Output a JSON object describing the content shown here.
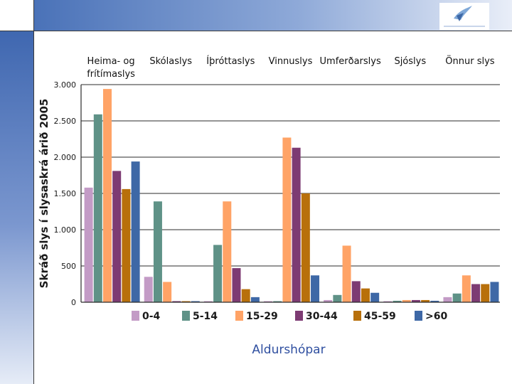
{
  "chart_data": {
    "type": "bar",
    "ylabel": "Skráð slys í slysaskrá árið 2005",
    "xlabel": "Aldurshópar",
    "categories": [
      [
        "Heima- og",
        "frítímaslys"
      ],
      [
        "Skólaslys"
      ],
      [
        "Íþróttaslys"
      ],
      [
        "Vinnuslys"
      ],
      [
        "Umferðarslys"
      ],
      [
        "Sjóslys"
      ],
      [
        "Önnur slys"
      ]
    ],
    "ylim": [
      0,
      3000
    ],
    "yticks": [
      0,
      500,
      1000,
      1500,
      2000,
      2500,
      3000
    ],
    "ytick_labels": [
      "0",
      "500",
      "1.000",
      "1.500",
      "2.000",
      "2.500",
      "3.000"
    ],
    "grid": true,
    "legend_position": "bottom",
    "series": [
      {
        "name": "0-4",
        "color": "#c39bc6",
        "values": [
          1580,
          350,
          10,
          5,
          30,
          10,
          70
        ]
      },
      {
        "name": "5-14",
        "color": "#5f9287",
        "values": [
          2590,
          1390,
          790,
          10,
          100,
          20,
          120
        ]
      },
      {
        "name": "15-29",
        "color": "#ffa366",
        "values": [
          2940,
          280,
          1390,
          2270,
          780,
          30,
          370
        ]
      },
      {
        "name": "30-44",
        "color": "#7d3b73",
        "values": [
          1810,
          10,
          470,
          2130,
          290,
          30,
          250
        ]
      },
      {
        "name": "45-59",
        "color": "#b8700b",
        "values": [
          1560,
          5,
          180,
          1500,
          190,
          30,
          250
        ]
      },
      {
        "name": ">60",
        "color": "#3e68a6",
        "values": [
          1940,
          5,
          70,
          370,
          130,
          20,
          280
        ]
      }
    ]
  }
}
